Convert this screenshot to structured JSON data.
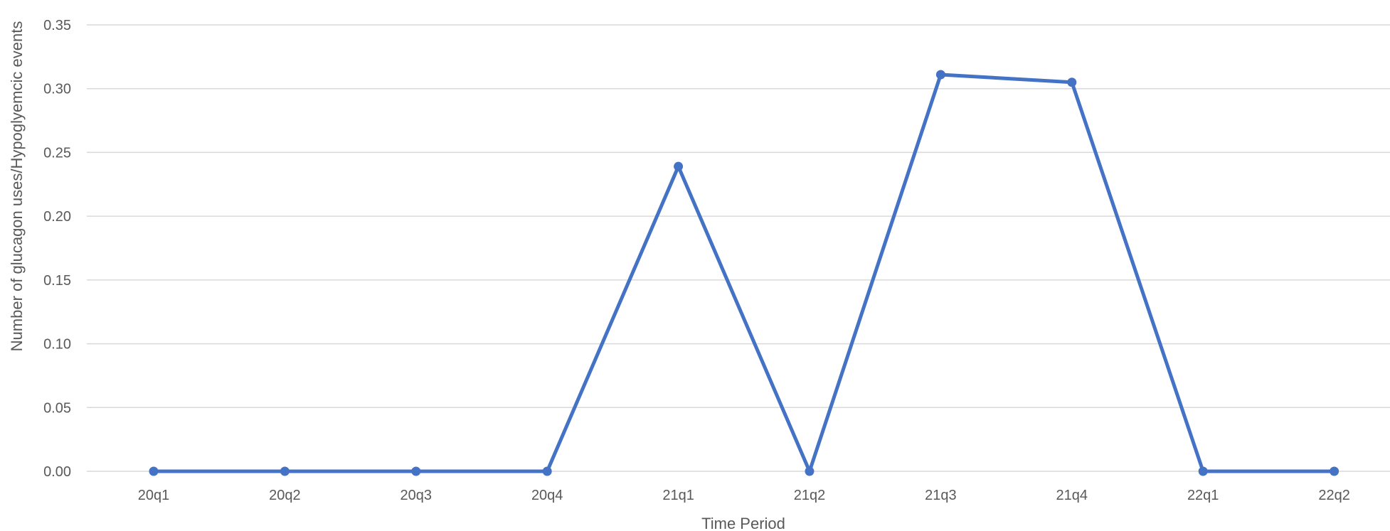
{
  "chart_data": {
    "type": "line",
    "title": "",
    "xlabel": "Time Period",
    "ylabel": "Number of glucagon uses/Hypoglyemcic events",
    "categories": [
      "20q1",
      "20q2",
      "20q3",
      "20q4",
      "21q1",
      "21q2",
      "21q3",
      "21q4",
      "22q1",
      "22q2"
    ],
    "series": [
      {
        "values": [
          0.0,
          0.0,
          0.0,
          0.0,
          0.239,
          0.0,
          0.311,
          0.305,
          0.0,
          0.0
        ],
        "color": "#4472c4"
      }
    ],
    "ylim": [
      0,
      0.35
    ],
    "yticks": [
      "0.00",
      "0.05",
      "0.10",
      "0.15",
      "0.20",
      "0.25",
      "0.30",
      "0.35"
    ],
    "grid": true,
    "legend": "none"
  }
}
